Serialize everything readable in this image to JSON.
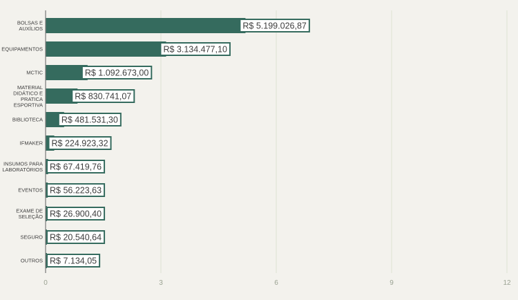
{
  "chart_data": {
    "type": "bar",
    "orientation": "horizontal",
    "title": "",
    "xlabel": "",
    "ylabel": "",
    "xlim": [
      0,
      12
    ],
    "x_ticks": [
      "0",
      "3",
      "6",
      "9",
      "12"
    ],
    "x_tick_values": [
      0,
      3,
      6,
      9,
      12
    ],
    "grid": "vertical",
    "legend": "none",
    "bar_color": "#356b5e",
    "grid_color": "#dde2d2",
    "categories": [
      [
        "BOLSAS E",
        "AUXÍLIOS"
      ],
      [
        "EQUIPAMENTOS"
      ],
      [
        "MCTIC"
      ],
      [
        "MATERIAL",
        "DIDÁTICO E",
        "PRATICA",
        "ESPORTIVA"
      ],
      [
        "BIBLIOTECA"
      ],
      [
        "IFMAKER"
      ],
      [
        "INSUMOS PARA",
        "LABORATÓRIOS"
      ],
      [
        "EVENTOS"
      ],
      [
        "EXAME DE",
        "SELEÇÃO"
      ],
      [
        "SEGURO"
      ],
      [
        "OUTROS"
      ]
    ],
    "values": [
      5.199,
      3.134,
      1.093,
      0.831,
      0.482,
      0.225,
      0.067,
      0.056,
      0.027,
      0.021,
      0.007
    ],
    "data_labels": [
      "R$ 5.199.026,87",
      "R$ 3.134.477,10",
      "R$ 1.092.673,00",
      "R$ 830.741,07",
      "R$ 481.531,30",
      "R$ 224.923,32",
      "R$ 67.419,76",
      "R$ 56.223,63",
      "R$ 26.900,40",
      "R$ 20.540,64",
      "R$ 7.134,05"
    ]
  }
}
